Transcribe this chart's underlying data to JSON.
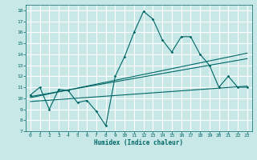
{
  "title": "",
  "xlabel": "Humidex (Indice chaleur)",
  "bg_color": "#c8e8e8",
  "grid_color": "#ffffff",
  "line_color": "#006666",
  "xlim": [
    -0.5,
    23.5
  ],
  "ylim": [
    7,
    18.5
  ],
  "xticks": [
    0,
    1,
    2,
    3,
    4,
    5,
    6,
    7,
    8,
    9,
    10,
    11,
    12,
    13,
    14,
    15,
    16,
    17,
    18,
    19,
    20,
    21,
    22,
    23
  ],
  "yticks": [
    7,
    8,
    9,
    10,
    11,
    12,
    13,
    14,
    15,
    16,
    17,
    18
  ],
  "zigzag_x": [
    0,
    1,
    2,
    3,
    4,
    5,
    6,
    7,
    8,
    9,
    10,
    11,
    12,
    13,
    14,
    15,
    16,
    17,
    18,
    19,
    20,
    21,
    22,
    23
  ],
  "zigzag_y": [
    10.3,
    11.0,
    9.0,
    10.8,
    10.7,
    9.6,
    9.8,
    8.8,
    7.5,
    12.0,
    13.8,
    16.0,
    17.9,
    17.2,
    15.3,
    14.2,
    15.6,
    15.6,
    14.0,
    13.0,
    11.0,
    12.0,
    11.0,
    11.0
  ],
  "trend1_x": [
    0,
    23
  ],
  "trend1_y": [
    10.15,
    13.6
  ],
  "trend2_x": [
    0,
    23
  ],
  "trend2_y": [
    9.7,
    11.1
  ],
  "trend3_x": [
    0,
    23
  ],
  "trend3_y": [
    10.05,
    14.1
  ]
}
